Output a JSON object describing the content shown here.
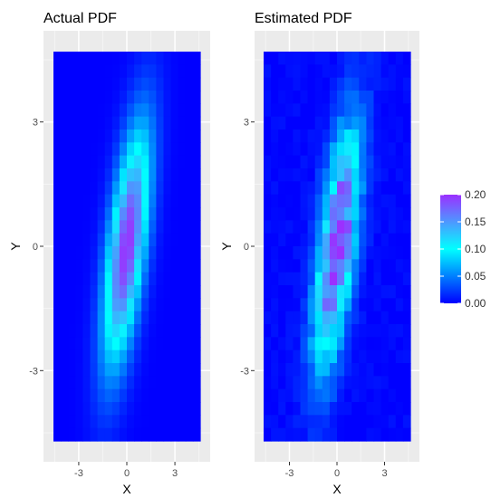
{
  "chart_data": [
    {
      "type": "heatmap",
      "title": "Actual PDF",
      "xlabel": "X",
      "ylabel": "Y",
      "xlim": [
        -5.2,
        5.2
      ],
      "ylim": [
        -5.2,
        5.2
      ],
      "x_ticks": [
        -3,
        0,
        3
      ],
      "y_ticks": [
        -3,
        0,
        3
      ],
      "x_tick_labels": [
        "-3",
        "0",
        "3"
      ],
      "y_tick_labels": [
        "-3",
        "0",
        "3"
      ],
      "grid": true,
      "distribution": {
        "mean_x": 0,
        "mean_y": 0,
        "sd_x": 1,
        "sd_y": 2,
        "correlation": 0.6
      },
      "peak_density": 0.2,
      "noise": false
    },
    {
      "type": "heatmap",
      "title": "Estimated PDF",
      "xlabel": "X",
      "ylabel": "Y",
      "xlim": [
        -5.2,
        5.2
      ],
      "ylim": [
        -5.2,
        5.2
      ],
      "x_ticks": [
        -3,
        0,
        3
      ],
      "y_ticks": [
        -3,
        0,
        3
      ],
      "x_tick_labels": [
        "-3",
        "0",
        "3"
      ],
      "y_tick_labels": [
        "-3",
        "0",
        "3"
      ],
      "grid": true,
      "distribution": {
        "mean_x": 0,
        "mean_y": 0,
        "sd_x": 1,
        "sd_y": 2,
        "correlation": 0.6
      },
      "peak_density": 0.2,
      "noise": true
    }
  ],
  "legend": {
    "placement": "right",
    "range": [
      0,
      0.2
    ],
    "ticks": [
      0.0,
      0.05,
      0.1,
      0.15,
      0.2
    ],
    "tick_labels": [
      "0.00",
      "0.05",
      "0.10",
      "0.15",
      "0.20"
    ],
    "colors": [
      "#0000ff",
      "#00ffff",
      "#9b30ff"
    ]
  }
}
